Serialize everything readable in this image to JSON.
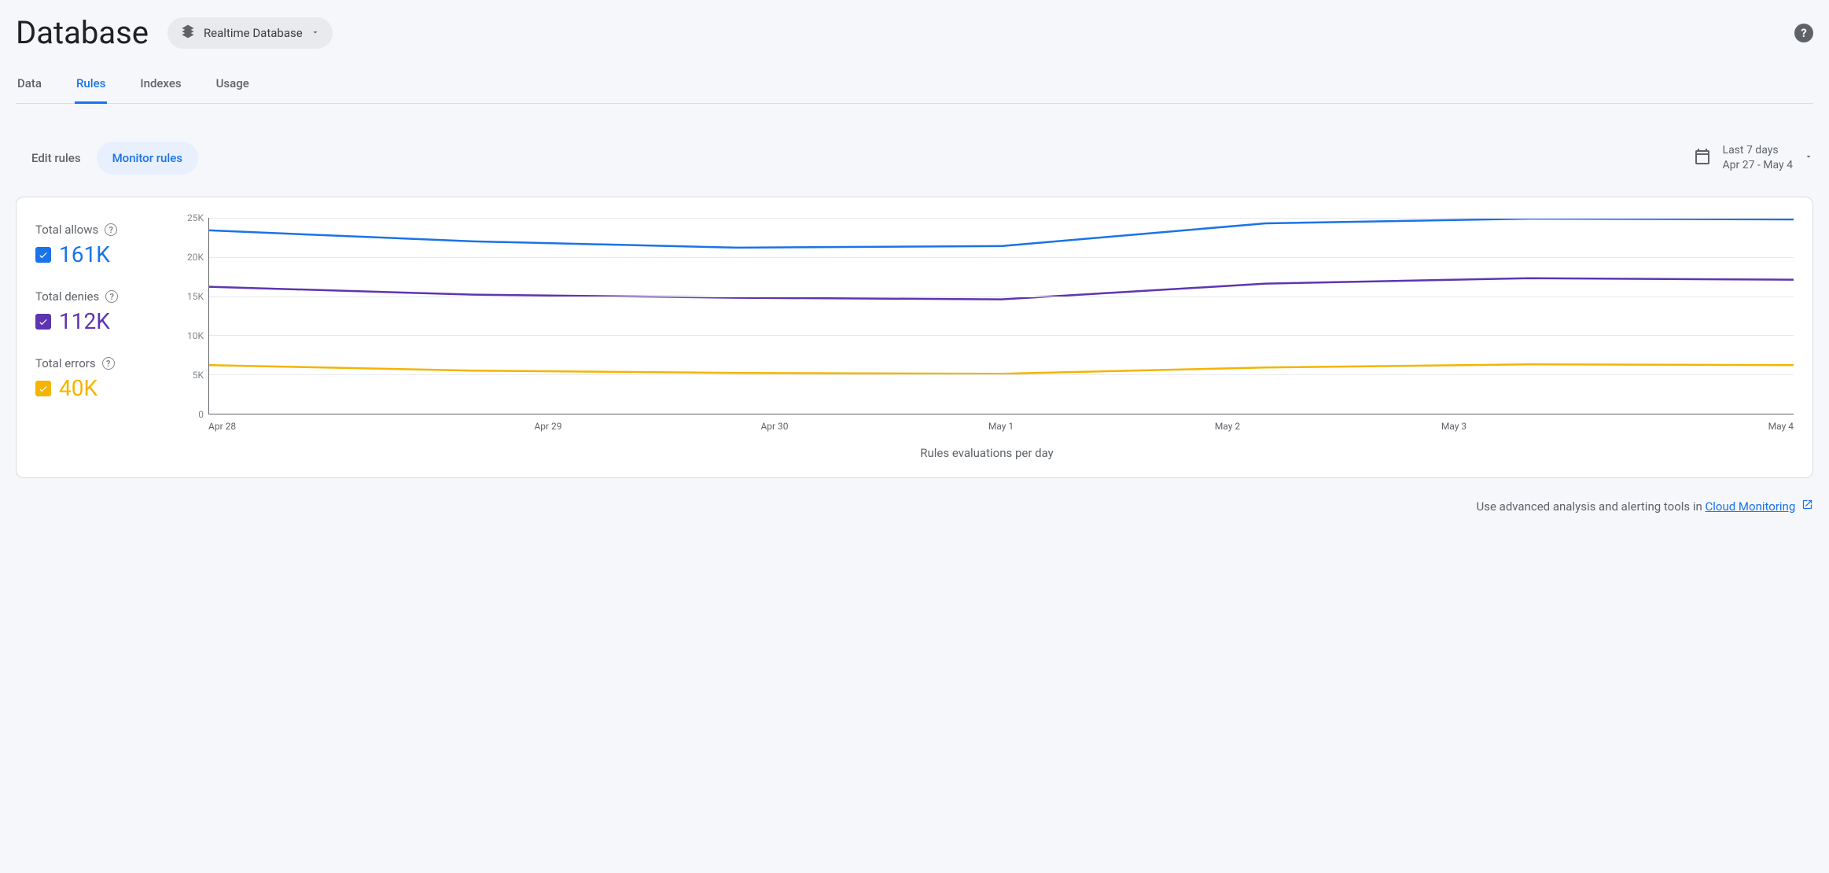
{
  "header": {
    "title": "Database",
    "selector_label": "Realtime Database"
  },
  "tabs": [
    "Data",
    "Rules",
    "Indexes",
    "Usage"
  ],
  "active_tab": "Rules",
  "sub_tabs": {
    "edit": "Edit rules",
    "monitor": "Monitor rules"
  },
  "active_sub_tab": "Monitor rules",
  "date_range": {
    "label": "Last 7 days",
    "range": "Apr 27 - May 4"
  },
  "metrics": [
    {
      "label": "Total allows",
      "value": "161K",
      "color": "#1a73e8"
    },
    {
      "label": "Total denies",
      "value": "112K",
      "color": "#5e35b1"
    },
    {
      "label": "Total errors",
      "value": "40K",
      "color": "#f4b400"
    }
  ],
  "chart": {
    "type": "line",
    "x_label": "Rules evaluations per day",
    "x_ticks": [
      "Apr 28",
      "Apr 29",
      "Apr 30",
      "May 1",
      "May 2",
      "May 3",
      "May 4"
    ],
    "y_ticks": [
      "0",
      "5K",
      "10K",
      "15K",
      "20K",
      "25K"
    ],
    "ylim": [
      0,
      25000
    ],
    "series": [
      {
        "name": "allows",
        "color": "#1a73e8",
        "values": [
          23400,
          22000,
          21200,
          21400,
          24300,
          24900,
          24800
        ]
      },
      {
        "name": "denies",
        "color": "#5e35b1",
        "values": [
          16200,
          15200,
          14800,
          14600,
          16600,
          17300,
          17100
        ]
      },
      {
        "name": "errors",
        "color": "#f4b400",
        "values": [
          6200,
          5500,
          5200,
          5100,
          5900,
          6300,
          6200
        ]
      }
    ],
    "background_color": "#ffffff",
    "grid_color": "#e8eaed",
    "line_width": 2.5
  },
  "footer": {
    "text": "Use advanced analysis and alerting tools in ",
    "link": "Cloud Monitoring"
  }
}
